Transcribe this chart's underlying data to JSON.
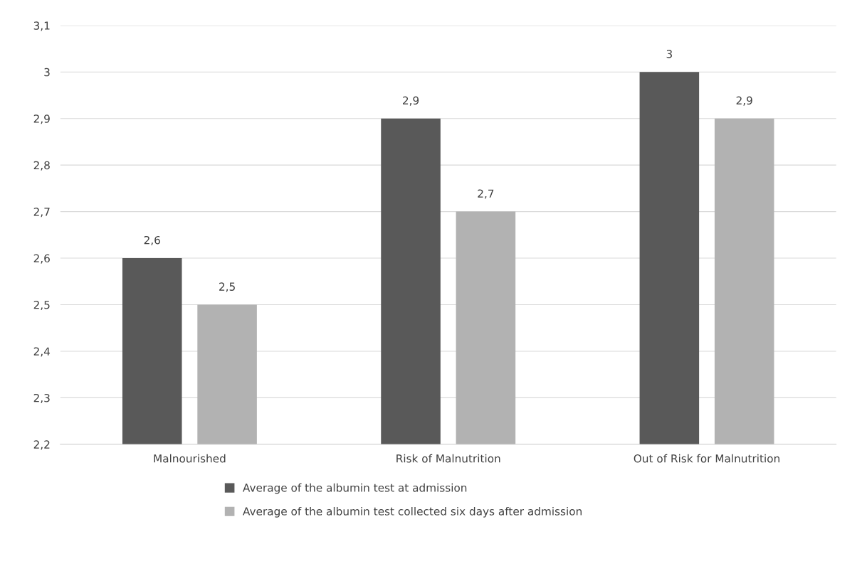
{
  "chart_data": {
    "type": "bar",
    "categories": [
      "Malnourished",
      "Risk of Malnutrition",
      "Out of Risk for Malnutrition"
    ],
    "series": [
      {
        "name": "Average of the albumin test at admission",
        "color": "#595959",
        "values": [
          2.6,
          2.9,
          3.0
        ],
        "value_labels": [
          "2,6",
          "2,9",
          "3"
        ]
      },
      {
        "name": "Average of the albumin test collected six days after admission",
        "color": "#b2b2b2",
        "values": [
          2.5,
          2.7,
          2.9
        ],
        "value_labels": [
          "2,5",
          "2,7",
          "2,9"
        ]
      }
    ],
    "ylim": [
      2.2,
      3.1
    ],
    "yticks": [
      {
        "value": 2.2,
        "label": "2,2"
      },
      {
        "value": 2.3,
        "label": "2,3"
      },
      {
        "value": 2.4,
        "label": "2,4"
      },
      {
        "value": 2.5,
        "label": "2,5"
      },
      {
        "value": 2.6,
        "label": "2,6"
      },
      {
        "value": 2.7,
        "label": "2,7"
      },
      {
        "value": 2.8,
        "label": "2,8"
      },
      {
        "value": 2.9,
        "label": "2,9"
      },
      {
        "value": 3.0,
        "label": "3"
      },
      {
        "value": 3.1,
        "label": "3,1"
      }
    ],
    "grid": "y",
    "legend": "bottom"
  }
}
